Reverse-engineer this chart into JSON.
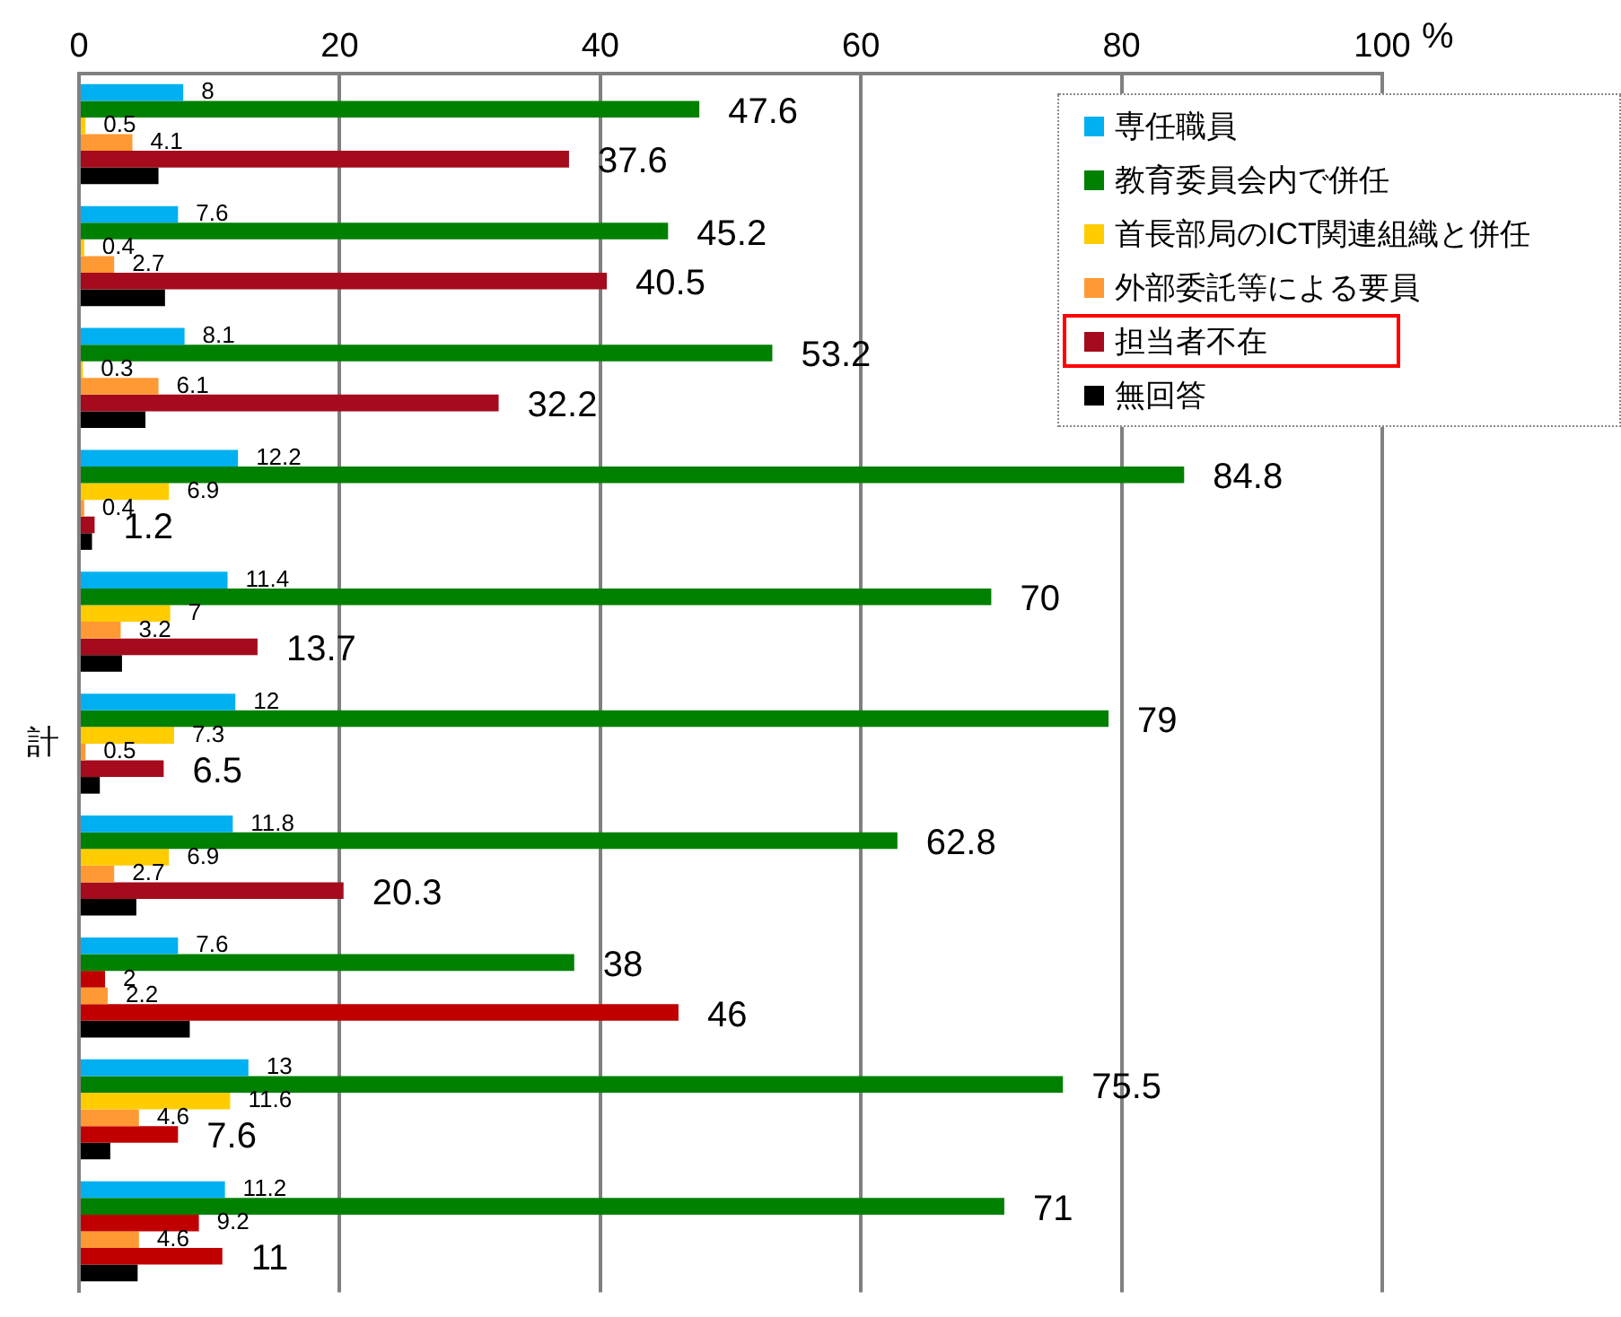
{
  "chart_data": {
    "type": "bar",
    "orientation": "horizontal",
    "xlabel": "%",
    "categories": [
      null,
      null,
      null,
      null,
      null,
      "計",
      null,
      null,
      null,
      null
    ],
    "xlim": [
      0,
      100
    ],
    "xticks": [
      0,
      20,
      40,
      60,
      80,
      100
    ],
    "grid": "x",
    "legend": "top right",
    "series": [
      {
        "name": "専任職員",
        "color": "#00b0f0",
        "values": [
          8,
          7.6,
          8.1,
          12.2,
          11.4,
          12,
          11.8,
          7.6,
          13,
          11.2
        ],
        "value_labels": [
          "8",
          "7.6",
          "8.1",
          "12.2",
          "11.4",
          "12",
          "11.8",
          "7.6",
          "13",
          "11.2"
        ]
      },
      {
        "name": "教育委員会内で併任",
        "color": "#008000",
        "values": [
          47.6,
          45.2,
          53.2,
          84.8,
          70,
          79,
          62.8,
          38,
          75.5,
          71
        ],
        "value_labels": [
          "47.6",
          "45.2",
          "53.2",
          "84.8",
          "70",
          "79",
          "62.8",
          "38",
          "75.5",
          "71"
        ]
      },
      {
        "name": "首長部局のICT関連組織と併任",
        "color": "#ffcc00",
        "colors": [
          "#ffcc00",
          "#ffcc00",
          "#ffcc00",
          "#ffcc00",
          "#ffcc00",
          "#ffcc00",
          "#ffcc00",
          "#c00000",
          "#ffcc00",
          "#c00000"
        ],
        "values": [
          0.5,
          0.4,
          0.3,
          6.9,
          7,
          7.3,
          6.9,
          2,
          11.6,
          9.2
        ],
        "value_labels": [
          "0.5",
          "0.4",
          "0.3",
          "6.9",
          "7",
          "7.3",
          "6.9",
          "2",
          "11.6",
          "9.2"
        ]
      },
      {
        "name": "外部委託等による要員",
        "color": "#ff9933",
        "values": [
          4.1,
          2.7,
          6.1,
          0.4,
          3.2,
          0.5,
          2.7,
          2.2,
          4.6,
          4.6
        ],
        "value_labels": [
          "4.1",
          "2.7",
          "6.1",
          "0.4",
          "3.2",
          "0.5",
          "2.7",
          "2.2",
          "4.6",
          "4.6"
        ]
      },
      {
        "name": "担当者不在",
        "color": "#a50b1c",
        "colors": [
          "#a50b1c",
          "#a50b1c",
          "#a50b1c",
          "#a50b1c",
          "#a50b1c",
          "#a50b1c",
          "#a50b1c",
          "#c00000",
          "#c00000",
          "#c00000"
        ],
        "values": [
          37.6,
          40.5,
          32.2,
          1.2,
          13.7,
          6.5,
          20.3,
          46,
          7.6,
          11
        ],
        "value_labels": [
          "37.6",
          "40.5",
          "32.2",
          "1.2",
          "13.7",
          "6.5",
          "20.3",
          "46",
          "7.6",
          "11"
        ]
      },
      {
        "name": "無回答",
        "color": "#000000",
        "values": [
          6.1,
          6.6,
          5.1,
          1,
          3.3,
          1.6,
          4.4,
          8.5,
          2.4,
          4.5
        ],
        "value_labels": [
          null,
          null,
          null,
          null,
          null,
          null,
          null,
          null,
          null,
          null
        ]
      }
    ]
  }
}
